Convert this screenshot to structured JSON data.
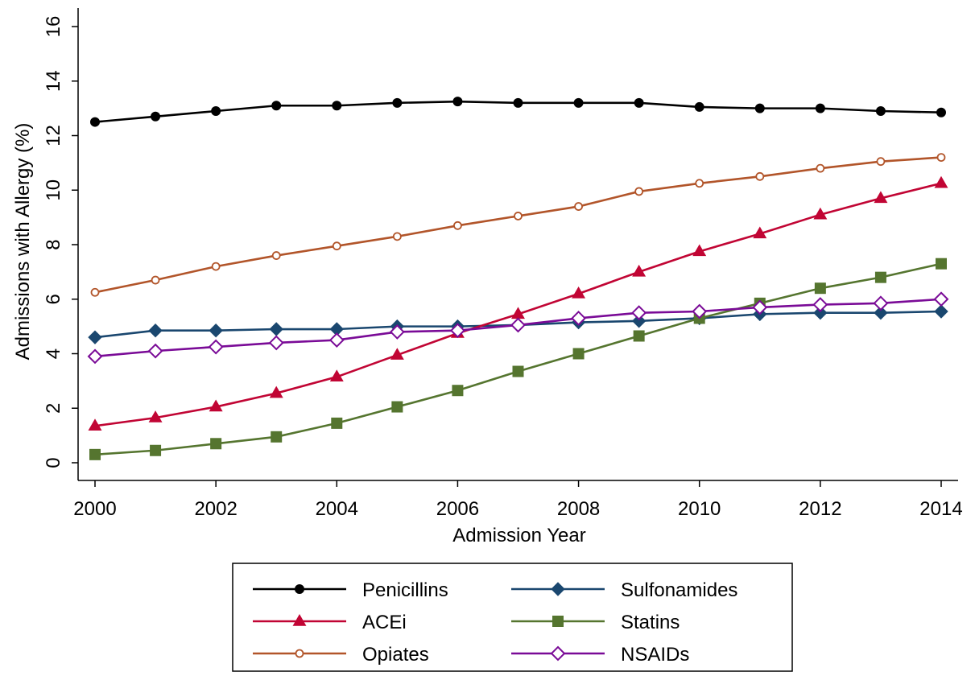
{
  "chart_data": {
    "type": "line",
    "title": "",
    "xlabel": "Admission Year",
    "ylabel": "Admissions with Allergy (%)",
    "xlim": [
      2000,
      2014
    ],
    "ylim": [
      0,
      16
    ],
    "x_ticks": [
      2000,
      2002,
      2004,
      2006,
      2008,
      2010,
      2012,
      2014
    ],
    "y_ticks": [
      0,
      2,
      4,
      6,
      8,
      10,
      12,
      14,
      16
    ],
    "grid": false,
    "legend_position": "bottom",
    "x": [
      2000,
      2001,
      2002,
      2003,
      2004,
      2005,
      2006,
      2007,
      2008,
      2009,
      2010,
      2011,
      2012,
      2013,
      2014
    ],
    "series": [
      {
        "name": "Penicillins",
        "color": "#000000",
        "marker": "filled-circle",
        "values": [
          12.5,
          12.7,
          12.9,
          13.1,
          13.1,
          13.2,
          13.25,
          13.2,
          13.2,
          13.2,
          13.05,
          13.0,
          13.0,
          12.9,
          12.85
        ]
      },
      {
        "name": "Sulfonamides",
        "color": "#1a476f",
        "marker": "filled-diamond",
        "values": [
          4.6,
          4.85,
          4.85,
          4.9,
          4.9,
          5.0,
          5.0,
          5.05,
          5.15,
          5.2,
          5.3,
          5.45,
          5.5,
          5.5,
          5.55
        ]
      },
      {
        "name": "ACEi",
        "color": "#c10534",
        "marker": "filled-triangle",
        "values": [
          1.35,
          1.65,
          2.05,
          2.55,
          3.15,
          3.95,
          4.75,
          5.45,
          6.2,
          7.0,
          7.75,
          8.4,
          9.1,
          9.7,
          10.25
        ]
      },
      {
        "name": "Statins",
        "color": "#55752f",
        "marker": "filled-square",
        "values": [
          0.3,
          0.45,
          0.7,
          0.95,
          1.45,
          2.05,
          2.65,
          3.35,
          4.0,
          4.65,
          5.3,
          5.85,
          6.4,
          6.8,
          7.3
        ]
      },
      {
        "name": "Opiates",
        "color": "#b2552a",
        "marker": "hollow-circle",
        "values": [
          6.25,
          6.7,
          7.2,
          7.6,
          7.95,
          8.3,
          8.7,
          9.05,
          9.4,
          9.95,
          10.25,
          10.5,
          10.8,
          11.05,
          11.2
        ]
      },
      {
        "name": "NSAIDs",
        "color": "#7a0b97",
        "marker": "hollow-diamond",
        "values": [
          3.9,
          4.1,
          4.25,
          4.4,
          4.5,
          4.8,
          4.85,
          5.05,
          5.3,
          5.5,
          5.55,
          5.7,
          5.8,
          5.85,
          6.0
        ]
      }
    ],
    "legend": [
      {
        "label": "Penicillins",
        "series": "Penicillins"
      },
      {
        "label": "Sulfonamides",
        "series": "Sulfonamides"
      },
      {
        "label": "ACEi",
        "series": "ACEi"
      },
      {
        "label": "Statins",
        "series": "Statins"
      },
      {
        "label": "Opiates",
        "series": "Opiates"
      },
      {
        "label": "NSAIDs",
        "series": "NSAIDs"
      }
    ]
  }
}
